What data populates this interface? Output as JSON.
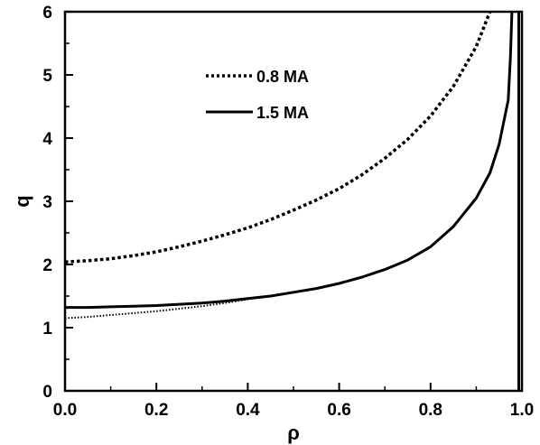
{
  "chart_data": {
    "type": "line",
    "title": "",
    "xlabel": "ρ",
    "ylabel": "q",
    "xlim": [
      0,
      1
    ],
    "ylim": [
      0,
      6
    ],
    "xticks": [
      "0.0",
      "0.2",
      "0.4",
      "0.6",
      "0.8",
      "1.0"
    ],
    "yticks": [
      "0",
      "1",
      "2",
      "3",
      "4",
      "5",
      "6"
    ],
    "grid": false,
    "legend_position": "top-center",
    "series": [
      {
        "name": "0.8 MA",
        "style": "dashed",
        "color": "#000000",
        "points": [
          [
            0.0,
            2.04
          ],
          [
            0.05,
            2.06
          ],
          [
            0.1,
            2.09
          ],
          [
            0.15,
            2.14
          ],
          [
            0.2,
            2.2
          ],
          [
            0.25,
            2.28
          ],
          [
            0.3,
            2.37
          ],
          [
            0.35,
            2.47
          ],
          [
            0.4,
            2.58
          ],
          [
            0.45,
            2.71
          ],
          [
            0.5,
            2.86
          ],
          [
            0.55,
            3.02
          ],
          [
            0.6,
            3.2
          ],
          [
            0.65,
            3.42
          ],
          [
            0.7,
            3.68
          ],
          [
            0.75,
            3.98
          ],
          [
            0.8,
            4.35
          ],
          [
            0.85,
            4.82
          ],
          [
            0.9,
            5.45
          ],
          [
            0.93,
            6.0
          ]
        ]
      },
      {
        "name": "1.5 MA",
        "style": "solid",
        "color": "#000000",
        "points": [
          [
            0.0,
            1.32
          ],
          [
            0.05,
            1.32
          ],
          [
            0.1,
            1.33
          ],
          [
            0.15,
            1.34
          ],
          [
            0.2,
            1.35
          ],
          [
            0.25,
            1.37
          ],
          [
            0.3,
            1.39
          ],
          [
            0.35,
            1.42
          ],
          [
            0.4,
            1.46
          ],
          [
            0.45,
            1.5
          ],
          [
            0.5,
            1.56
          ],
          [
            0.55,
            1.62
          ],
          [
            0.6,
            1.7
          ],
          [
            0.65,
            1.8
          ],
          [
            0.7,
            1.92
          ],
          [
            0.75,
            2.07
          ],
          [
            0.8,
            2.28
          ],
          [
            0.85,
            2.6
          ],
          [
            0.9,
            3.05
          ],
          [
            0.93,
            3.45
          ],
          [
            0.95,
            3.9
          ],
          [
            0.97,
            4.6
          ],
          [
            0.975,
            5.3
          ],
          [
            0.978,
            6.0
          ]
        ]
      },
      {
        "name": "",
        "style": "dotted",
        "color": "#000000",
        "points": [
          [
            0.0,
            1.15
          ],
          [
            0.05,
            1.17
          ],
          [
            0.1,
            1.2
          ],
          [
            0.15,
            1.23
          ],
          [
            0.2,
            1.26
          ],
          [
            0.25,
            1.3
          ],
          [
            0.3,
            1.34
          ],
          [
            0.35,
            1.39
          ],
          [
            0.4,
            1.45
          ],
          [
            0.45,
            1.5
          ]
        ]
      },
      {
        "name": "",
        "style": "solid",
        "color": "#000000",
        "points": [
          [
            0.993,
            6.0
          ],
          [
            0.993,
            0.0
          ]
        ]
      }
    ]
  }
}
